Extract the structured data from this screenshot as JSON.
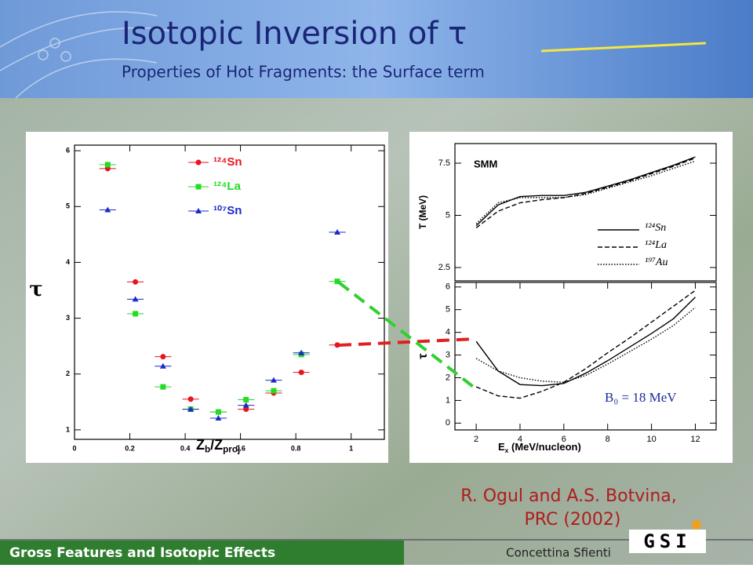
{
  "header": {
    "title": "Isotopic Inversion of τ",
    "subtitle": "Properties of Hot Fragments: the Surface term"
  },
  "chart_data": [
    {
      "type": "scatter",
      "y_label": "τ",
      "x_label": [
        "Z",
        "b",
        "/Z",
        "proj"
      ],
      "xlim": [
        0,
        1.12
      ],
      "ylim": [
        0.83,
        6.1
      ],
      "xticks": [
        0,
        0.2,
        0.4,
        0.6,
        0.8,
        1
      ],
      "yticks": [
        1,
        2,
        3,
        4,
        5,
        6
      ],
      "x": [
        0.12,
        0.22,
        0.32,
        0.42,
        0.52,
        0.62,
        0.72,
        0.82,
        0.95
      ],
      "xerr": 0.03,
      "series": [
        {
          "name": "¹²⁴Sn",
          "color": "#e8141e",
          "marker": "circle",
          "values": [
            5.68,
            3.65,
            2.31,
            1.55,
            1.32,
            1.37,
            1.66,
            2.03,
            2.52
          ]
        },
        {
          "name": "¹²⁴La",
          "color": "#22dd22",
          "marker": "square",
          "values": [
            5.75,
            3.08,
            1.77,
            1.37,
            1.32,
            1.54,
            1.7,
            2.35,
            3.66
          ]
        },
        {
          "name": "¹⁰⁷Sn",
          "color": "#1c2ac8",
          "marker": "triangle",
          "values": [
            4.94,
            3.34,
            2.14,
            1.37,
            1.21,
            1.44,
            1.89,
            2.38,
            4.54
          ]
        }
      ]
    },
    {
      "type": "line",
      "y_label": "T (MeV)",
      "annotation": "SMM",
      "xlim": [
        1.03,
        12.95
      ],
      "ylim": [
        1.86,
        8.44
      ],
      "yticks": [
        2.5,
        5,
        7.5
      ],
      "x": [
        2,
        3,
        4,
        5,
        6,
        7,
        8,
        9,
        10,
        11,
        12
      ],
      "series": [
        {
          "name": "¹²⁴Sn",
          "color": "#000000",
          "style": "solid",
          "values": [
            4.5,
            5.5,
            5.9,
            5.95,
            5.95,
            6.1,
            6.4,
            6.7,
            7.05,
            7.4,
            7.8
          ]
        },
        {
          "name": "¹²⁴La",
          "color": "#000000",
          "style": "dashed",
          "values": [
            4.4,
            5.2,
            5.6,
            5.75,
            5.85,
            6.05,
            6.35,
            6.65,
            7.0,
            7.35,
            7.75
          ]
        },
        {
          "name": "¹⁹⁷Au",
          "color": "#000000",
          "style": "dotted",
          "values": [
            4.6,
            5.6,
            5.85,
            5.85,
            5.85,
            6.0,
            6.3,
            6.6,
            6.9,
            7.25,
            7.6
          ]
        }
      ]
    },
    {
      "type": "line",
      "y_label": "τ",
      "x_label": [
        "E",
        "x",
        " (MeV/nucleon)"
      ],
      "annotation": "B₀ = 18 MeV",
      "xlim": [
        1.03,
        12.95
      ],
      "ylim": [
        -0.3,
        6.2
      ],
      "xticks": [
        2,
        4,
        6,
        8,
        10,
        12
      ],
      "yticks": [
        0,
        1,
        2,
        3,
        4,
        5,
        6
      ],
      "x": [
        2,
        3,
        4,
        5,
        6,
        7,
        8,
        9,
        10,
        11,
        12
      ],
      "series": [
        {
          "name": "¹²⁴Sn",
          "color": "#000000",
          "style": "solid",
          "values": [
            3.6,
            2.3,
            1.7,
            1.65,
            1.75,
            2.2,
            2.75,
            3.35,
            3.95,
            4.6,
            5.55
          ]
        },
        {
          "name": "¹²⁴La",
          "color": "#000000",
          "style": "dashed",
          "values": [
            1.6,
            1.2,
            1.1,
            1.4,
            1.8,
            2.4,
            3.1,
            3.75,
            4.45,
            5.15,
            5.85
          ]
        },
        {
          "name": "¹⁹⁷Au",
          "color": "#000000",
          "style": "dotted",
          "values": [
            2.85,
            2.3,
            2.0,
            1.85,
            1.8,
            2.1,
            2.6,
            3.15,
            3.7,
            4.3,
            5.1
          ]
        }
      ]
    }
  ],
  "citation": [
    "R. Ogul and A.S. Botvina,",
    "PRC (2002)"
  ],
  "footer": {
    "section": "Gross Features and Isotopic Effects",
    "author": "Concettina Sfienti",
    "logo": "GSI"
  }
}
